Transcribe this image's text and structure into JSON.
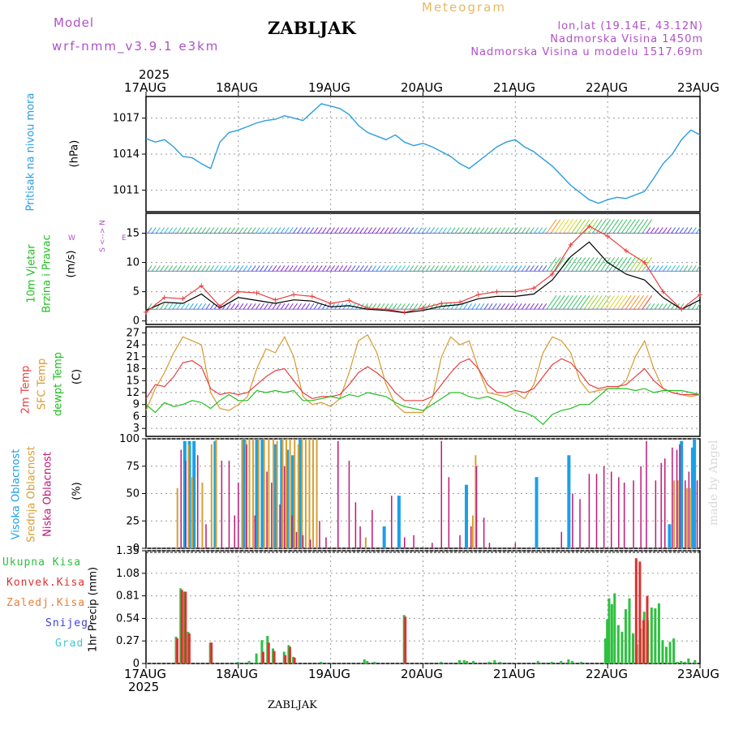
{
  "header": {
    "model_label": "Model",
    "model_name": "wrf-nmm_v3.9.1  e3km",
    "station": "ZABLJAK",
    "product": "Meteogram",
    "coords": "lon,lat (19.14E, 43.12N)",
    "elevation": "Nadmorska Visina 1450m",
    "model_elevation": "Nadmorska Visina u modelu 1517.69m",
    "footer_station": "ZABLJAK",
    "watermark": "made by Angel"
  },
  "colors": {
    "pressure": "#2a9de0",
    "temp2m": "#e84040",
    "sfc": "#d89a30",
    "dewpt": "#20c020",
    "high_cloud": "#1aa0e8",
    "mid_cloud": "#d8a030",
    "low_cloud": "#c01878",
    "total_precip": "#2ec040",
    "conv_precip": "#e03030",
    "title_purple": "#b050c8",
    "title_orange": "#e8b860"
  },
  "time_axis": {
    "year": "2025",
    "ticks": [
      "17AUG",
      "18AUG",
      "19AUG",
      "20AUG",
      "21AUG",
      "22AUG",
      "23AUG"
    ]
  },
  "panel_labels": {
    "pressure": {
      "name": "Pritisak na nivou mora",
      "unit": "(hPa)"
    },
    "wind": {
      "name1": "10m Vjetar",
      "name2": "Brzina i Pravac",
      "unit": "(m/s)",
      "compass_ns": "S <--> N",
      "compass_w": "W",
      "compass_e": "E"
    },
    "temp": {
      "name1": "2m Temp",
      "name2": "SFC Temp",
      "name3": "dewpt Temp",
      "unit": "(C)"
    },
    "cloud": {
      "name1": "Visoka Oblacnost",
      "name2": "Srednja Oblacnost",
      "name3": "Niska Oblacnost",
      "unit": "(%)"
    },
    "precip": {
      "legend": [
        "Ukupna Kisa",
        "Konvek.Kisa",
        "Zaledj.Kisa",
        "Snijeg",
        "Grad"
      ],
      "unit": "1hr Precip (mm)"
    }
  },
  "chart_data": [
    {
      "type": "line",
      "title": "Pritisak na nivou mora",
      "ylabel": "(hPa)",
      "ylim": [
        1009.2,
        1018.8
      ],
      "yticks": [
        "1017",
        "1014",
        "1011"
      ],
      "x_days": [
        0,
        0.1,
        0.2,
        0.3,
        0.4,
        0.5,
        0.6,
        0.7,
        0.8,
        0.9,
        1.0,
        1.1,
        1.2,
        1.3,
        1.4,
        1.5,
        1.6,
        1.7,
        1.8,
        1.9,
        2.0,
        2.1,
        2.2,
        2.3,
        2.4,
        2.5,
        2.6,
        2.7,
        2.8,
        2.9,
        3.0,
        3.1,
        3.2,
        3.3,
        3.4,
        3.5,
        3.6,
        3.7,
        3.8,
        3.9,
        4.0,
        4.1,
        4.2,
        4.3,
        4.4,
        4.5,
        4.6,
        4.7,
        4.8,
        4.9,
        5.0,
        5.1,
        5.2,
        5.3,
        5.4,
        5.5,
        5.6,
        5.7,
        5.8,
        5.9,
        6.0
      ],
      "series": [
        {
          "name": "MSLP",
          "values": [
            1015.3,
            1015.0,
            1015.2,
            1014.6,
            1013.8,
            1013.7,
            1013.2,
            1012.8,
            1015.0,
            1015.8,
            1016.0,
            1016.3,
            1016.6,
            1016.8,
            1016.9,
            1017.2,
            1017.0,
            1016.8,
            1017.5,
            1018.2,
            1018.0,
            1017.8,
            1017.3,
            1016.4,
            1015.8,
            1015.5,
            1015.2,
            1015.6,
            1015.0,
            1014.7,
            1014.9,
            1014.6,
            1014.2,
            1013.8,
            1013.2,
            1012.8,
            1013.4,
            1014.0,
            1014.6,
            1015.0,
            1015.2,
            1014.6,
            1014.2,
            1013.6,
            1013.0,
            1012.2,
            1011.4,
            1010.8,
            1010.2,
            1009.9,
            1010.2,
            1010.4,
            1010.3,
            1010.6,
            1010.9,
            1012.0,
            1013.2,
            1014.0,
            1015.2,
            1016.0,
            1015.6
          ]
        }
      ]
    },
    {
      "type": "line",
      "title": "10m Vjetar Brzina i Pravac",
      "ylabel": "(m/s)",
      "ylim": [
        -0.6,
        18.4
      ],
      "yticks": [
        "15",
        "10",
        "5",
        "0"
      ],
      "x_days": [
        0,
        0.2,
        0.4,
        0.6,
        0.8,
        1.0,
        1.2,
        1.4,
        1.6,
        1.8,
        2.0,
        2.2,
        2.4,
        2.6,
        2.8,
        3.0,
        3.2,
        3.4,
        3.6,
        3.8,
        4.0,
        4.2,
        4.4,
        4.6,
        4.8,
        5.0,
        5.2,
        5.4,
        5.6,
        5.8,
        6.0
      ],
      "series": [
        {
          "name": "speed",
          "values": [
            1.5,
            4.0,
            3.8,
            6.0,
            2.5,
            5.0,
            4.8,
            3.6,
            4.5,
            4.2,
            3.0,
            3.5,
            2.2,
            2.0,
            1.5,
            2.2,
            3.0,
            3.2,
            4.5,
            5.0,
            5.0,
            5.6,
            8.0,
            13.0,
            16.2,
            14.5,
            12.0,
            10.0,
            5.0,
            2.0,
            4.5
          ]
        },
        {
          "name": "mean",
          "values": [
            1.8,
            3.2,
            3.0,
            4.6,
            2.2,
            4.0,
            3.5,
            3.0,
            3.6,
            3.4,
            2.4,
            2.6,
            2.0,
            1.8,
            1.4,
            1.8,
            2.5,
            2.8,
            3.8,
            4.2,
            4.2,
            4.6,
            7.0,
            11.0,
            13.5,
            10.0,
            8.0,
            7.0,
            4.0,
            2.0,
            3.6
          ]
        }
      ],
      "barb_rows_ms": [
        15,
        8.5,
        2
      ]
    },
    {
      "type": "line",
      "title": "2m / SFC / dewpt Temp",
      "ylabel": "(C)",
      "ylim": [
        1.0,
        28.5
      ],
      "yticks": [
        "27",
        "24",
        "21",
        "18",
        "15",
        "12",
        "9",
        "6",
        "3"
      ],
      "x_days": [
        0,
        0.1,
        0.2,
        0.3,
        0.4,
        0.5,
        0.6,
        0.7,
        0.8,
        0.9,
        1.0,
        1.1,
        1.2,
        1.3,
        1.4,
        1.5,
        1.6,
        1.7,
        1.8,
        1.9,
        2.0,
        2.1,
        2.2,
        2.3,
        2.4,
        2.5,
        2.6,
        2.7,
        2.8,
        2.9,
        3.0,
        3.1,
        3.2,
        3.3,
        3.4,
        3.5,
        3.6,
        3.7,
        3.8,
        3.9,
        4.0,
        4.1,
        4.2,
        4.3,
        4.4,
        4.5,
        4.6,
        4.7,
        4.8,
        4.9,
        5.0,
        5.1,
        5.2,
        5.3,
        5.4,
        5.5,
        5.6,
        5.7,
        5.8,
        5.9,
        6.0
      ],
      "series": [
        {
          "name": "2m Temp",
          "values": [
            10.5,
            14,
            13.5,
            16,
            19.5,
            20,
            18.5,
            13,
            11.5,
            12,
            11.5,
            12,
            14,
            16,
            17.5,
            18,
            15,
            12,
            10.5,
            11,
            11,
            11.5,
            14,
            17,
            18.5,
            17,
            15,
            12,
            10,
            10,
            10,
            11,
            14,
            17,
            19.5,
            20.5,
            18,
            14,
            12,
            12,
            12.5,
            12,
            13,
            16,
            19,
            20.5,
            19.5,
            17,
            14,
            13,
            13.5,
            13.5,
            14,
            16,
            18,
            15,
            13,
            12,
            11.5,
            11.5,
            11.5
          ]
        },
        {
          "name": "SFC Temp",
          "values": [
            7.5,
            13,
            17,
            22,
            26,
            25,
            24,
            12,
            8,
            7.5,
            9,
            11,
            18,
            23,
            22,
            26,
            21,
            11,
            9,
            9.5,
            8.5,
            10.5,
            17,
            25,
            26.5,
            22,
            14,
            9,
            7,
            7,
            7,
            10.5,
            21,
            26,
            24,
            25,
            18,
            12,
            11.5,
            11,
            12,
            10.5,
            14,
            22,
            26,
            25,
            22,
            15,
            12,
            12.5,
            13,
            13,
            15,
            21,
            25,
            18,
            13,
            12,
            11.5,
            11,
            11.5
          ]
        },
        {
          "name": "dewpt Temp",
          "values": [
            9,
            7,
            9.5,
            8.5,
            9,
            10,
            9.5,
            8,
            10,
            11.5,
            10,
            10,
            12.5,
            12,
            12.5,
            12,
            12.5,
            10,
            10,
            10.5,
            11,
            10.5,
            11.5,
            11,
            12,
            11.5,
            11,
            9.5,
            8.5,
            8,
            7.5,
            9,
            10.5,
            12,
            12,
            11,
            10.5,
            11,
            10,
            9,
            7.5,
            7,
            6,
            4,
            6.5,
            7.5,
            8,
            9,
            9,
            11,
            13,
            13,
            13,
            12.5,
            13,
            12,
            12.5,
            12.5,
            12.5,
            12,
            11.5
          ]
        }
      ]
    },
    {
      "type": "bar",
      "title": "Visoka / Srednja / Niska Oblacnost",
      "ylabel": "(%)",
      "ylim": [
        0,
        100
      ],
      "yticks": [
        "100",
        "75",
        "50",
        "25",
        "0"
      ],
      "series": [
        {
          "name": "Visoka Oblacnost",
          "x_days": [
            0.42,
            0.47,
            0.52,
            0.75,
            1.06,
            1.2,
            1.26,
            1.4,
            1.47,
            1.53,
            1.59,
            1.67,
            2.58,
            2.74,
            3.47,
            4.23,
            4.58,
            5.67,
            5.8,
            5.92,
            5.94
          ],
          "values": [
            98,
            98,
            98,
            98,
            100,
            100,
            100,
            95,
            100,
            90,
            85,
            100,
            20,
            48,
            58,
            65,
            85,
            22,
            98,
            92,
            100
          ]
        },
        {
          "name": "Srednja Oblacnost",
          "x_days": [
            0.34,
            0.46,
            0.5,
            0.61,
            0.71,
            0.76,
            1.04,
            1.08,
            1.12,
            1.16,
            1.22,
            1.28,
            1.33,
            1.38,
            1.42,
            1.48,
            1.52,
            1.56,
            1.61,
            1.65,
            1.69,
            1.73,
            1.77,
            1.81,
            1.85,
            2.38,
            3.54,
            3.57,
            5.72,
            5.76,
            5.86,
            5.9
          ],
          "values": [
            55,
            95,
            65,
            60,
            95,
            100,
            100,
            100,
            100,
            100,
            100,
            100,
            100,
            100,
            98,
            100,
            100,
            100,
            100,
            95,
            100,
            100,
            100,
            100,
            100,
            10,
            30,
            85,
            62,
            62,
            55,
            55
          ]
        },
        {
          "name": "Niska Oblacnost",
          "x_days": [
            0.38,
            0.43,
            0.56,
            0.65,
            0.82,
            0.9,
            0.96,
            1.0,
            1.09,
            1.18,
            1.31,
            1.36,
            1.45,
            1.5,
            1.58,
            1.63,
            1.7,
            1.78,
            1.88,
            1.95,
            2.08,
            2.2,
            2.27,
            2.32,
            2.45,
            2.66,
            2.8,
            2.9,
            3.1,
            3.2,
            3.28,
            3.4,
            3.52,
            3.58,
            3.66,
            3.72,
            4.0,
            4.5,
            4.62,
            4.7,
            4.8,
            4.88,
            4.96,
            5.04,
            5.12,
            5.18,
            5.28,
            5.36,
            5.42,
            5.52,
            5.58,
            5.62,
            5.7,
            5.75,
            5.78,
            5.84,
            5.88,
            5.97
          ],
          "values": [
            90,
            80,
            85,
            22,
            80,
            80,
            30,
            60,
            95,
            30,
            70,
            60,
            40,
            75,
            30,
            15,
            12,
            8,
            25,
            10,
            98,
            80,
            42,
            20,
            35,
            48,
            10,
            12,
            5,
            98,
            65,
            12,
            20,
            75,
            28,
            5,
            5,
            15,
            50,
            45,
            68,
            68,
            75,
            70,
            65,
            60,
            62,
            75,
            98,
            62,
            78,
            82,
            92,
            90,
            95,
            62,
            70,
            62
          ]
        }
      ]
    },
    {
      "type": "bar",
      "title": "1hr Precip",
      "ylabel": "1hr Precip (mm)",
      "ylim": [
        0,
        1.35
      ],
      "yticks": [
        "1.35",
        "1.08",
        "0.81",
        "0.54",
        "0.27",
        "0"
      ],
      "series": [
        {
          "name": "Ukupna Kisa",
          "x_days": [
            0.33,
            0.38,
            0.42,
            0.46,
            0.7,
            1.0,
            1.12,
            1.2,
            1.26,
            1.32,
            1.38,
            1.5,
            1.55,
            1.6,
            1.9,
            2.37,
            2.4,
            2.48,
            2.8,
            3.2,
            3.4,
            3.45,
            3.48,
            3.55,
            3.72,
            3.78,
            3.84,
            4.25,
            4.4,
            4.5,
            4.58,
            4.62,
            4.72,
            4.98,
            5.0,
            5.02,
            5.05,
            5.08,
            5.12,
            5.16,
            5.2,
            5.24,
            5.28,
            5.32,
            5.36,
            5.4,
            5.44,
            5.48,
            5.52,
            5.56,
            5.6,
            5.64,
            5.68,
            5.72,
            5.76,
            5.8,
            5.84,
            5.88,
            5.95
          ],
          "values": [
            0.32,
            0.9,
            0.86,
            0.38,
            0.25,
            0.02,
            0.03,
            0.12,
            0.28,
            0.33,
            0.18,
            0.14,
            0.22,
            0.08,
            0.02,
            0.05,
            0.03,
            0.02,
            0.58,
            0.02,
            0.04,
            0.04,
            0.03,
            0.03,
            0.02,
            0.04,
            0.02,
            0.03,
            0.02,
            0.03,
            0.05,
            0.03,
            0.02,
            0.3,
            0.53,
            0.78,
            0.71,
            0.84,
            0.46,
            0.38,
            0.65,
            0.78,
            0.36,
            0.23,
            0.42,
            0.62,
            0.52,
            0.67,
            0.66,
            0.72,
            0.28,
            0.2,
            0.26,
            0.3,
            0.02,
            0.03,
            0.02,
            0.06,
            0.04
          ]
        },
        {
          "name": "Konvek.Kisa",
          "x_days": [
            0.33,
            0.38,
            0.42,
            0.46,
            0.7,
            1.26,
            1.32,
            1.38,
            1.5,
            1.55,
            1.6,
            2.8,
            5.3,
            5.34,
            5.38,
            5.42
          ],
          "values": [
            0.3,
            0.88,
            0.86,
            0.36,
            0.25,
            0.14,
            0.25,
            0.15,
            0.1,
            0.2,
            0.07,
            0.56,
            1.26,
            1.22,
            0.52,
            0.81
          ]
        }
      ]
    }
  ]
}
